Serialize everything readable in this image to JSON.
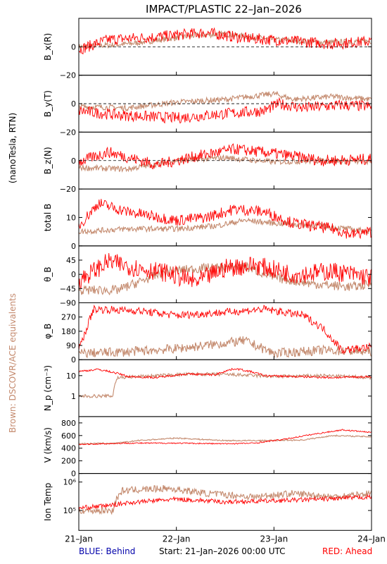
{
  "title": "IMPACT/PLASTIC   22–Jan–2026",
  "left_label_top": "(nanoTesla, RTN)",
  "left_label_bottom": "Brown: DSCOVR/ACE equivalents",
  "footer": {
    "blue": "BLUE: Behind",
    "start": "Start: 21–Jan–2026 00:00 UTC",
    "red": "RED: Ahead"
  },
  "colors": {
    "ahead": "#ff0000",
    "dscovr": "#c48a6e",
    "behind": "#0000aa",
    "axis": "#000000"
  },
  "x_ticks": [
    "21–Jan",
    "22–Jan",
    "23–Jan",
    "24–Jan"
  ],
  "chart_data": [
    {
      "type": "scatter",
      "ylabel": "B_x(R)",
      "yticks": [
        {
          "v": 0,
          "t": "0"
        },
        {
          "v": -20,
          "t": "−20"
        }
      ],
      "ylim": [
        -20,
        20
      ],
      "zero_line": true,
      "series": [
        {
          "color": "dscovr",
          "base": [
            [
              0,
              0
            ],
            [
              0.5,
              2
            ],
            [
              1.2,
              8
            ],
            [
              1.5,
              9
            ],
            [
              2.0,
              5
            ],
            [
              2.5,
              3
            ],
            [
              3,
              4
            ]
          ],
          "noise": 2
        },
        {
          "color": "ahead",
          "base": [
            [
              0,
              -2
            ],
            [
              0.3,
              5
            ],
            [
              0.8,
              7
            ],
            [
              1.3,
              10
            ],
            [
              1.7,
              6
            ],
            [
              2.2,
              4
            ],
            [
              2.6,
              2
            ],
            [
              3,
              4
            ]
          ],
          "noise": 4
        }
      ]
    },
    {
      "type": "scatter",
      "ylabel": "B_y(T)",
      "yticks": [
        {
          "v": 0,
          "t": "0"
        },
        {
          "v": -20,
          "t": "−20"
        }
      ],
      "ylim": [
        -20,
        20
      ],
      "zero_line": true,
      "series": [
        {
          "color": "dscovr",
          "base": [
            [
              0,
              -2
            ],
            [
              0.5,
              -3
            ],
            [
              1.0,
              1
            ],
            [
              1.5,
              3
            ],
            [
              2.0,
              7
            ],
            [
              2.2,
              3
            ],
            [
              2.6,
              5
            ],
            [
              3,
              3
            ]
          ],
          "noise": 2
        },
        {
          "color": "ahead",
          "base": [
            [
              0,
              -5
            ],
            [
              0.4,
              -8
            ],
            [
              1.0,
              -10
            ],
            [
              1.5,
              -7
            ],
            [
              1.9,
              -5
            ],
            [
              2.05,
              0
            ],
            [
              2.3,
              -3
            ],
            [
              2.7,
              -1
            ],
            [
              3,
              -2
            ]
          ],
          "noise": 4
        }
      ]
    },
    {
      "type": "scatter",
      "ylabel": "B_z(N)",
      "yticks": [
        {
          "v": 0,
          "t": "0"
        },
        {
          "v": -20,
          "t": "−20"
        }
      ],
      "ylim": [
        -20,
        20
      ],
      "zero_line": true,
      "series": [
        {
          "color": "dscovr",
          "base": [
            [
              0,
              -5
            ],
            [
              0.5,
              -6
            ],
            [
              1.0,
              0
            ],
            [
              1.5,
              2
            ],
            [
              2.0,
              -1
            ],
            [
              2.5,
              0
            ],
            [
              3,
              -1
            ]
          ],
          "noise": 2
        },
        {
          "color": "ahead",
          "base": [
            [
              0,
              -1
            ],
            [
              0.3,
              6
            ],
            [
              0.8,
              -3
            ],
            [
              1.2,
              3
            ],
            [
              1.6,
              8
            ],
            [
              2.0,
              5
            ],
            [
              2.5,
              0
            ],
            [
              3,
              1
            ]
          ],
          "noise": 4
        }
      ]
    },
    {
      "type": "line",
      "ylabel": "total B",
      "yticks": [
        {
          "v": 10,
          "t": "10"
        },
        {
          "v": 0,
          "t": "0"
        }
      ],
      "ylim": [
        0,
        20
      ],
      "zero_line": false,
      "series": [
        {
          "color": "dscovr",
          "base": [
            [
              0,
              5
            ],
            [
              0.5,
              6
            ],
            [
              1.0,
              6
            ],
            [
              1.4,
              7
            ],
            [
              1.7,
              9
            ],
            [
              2.0,
              8
            ],
            [
              2.5,
              7
            ],
            [
              3,
              5
            ]
          ],
          "noise": 1
        },
        {
          "color": "ahead",
          "base": [
            [
              0,
              7
            ],
            [
              0.2,
              15
            ],
            [
              0.5,
              12
            ],
            [
              1.0,
              9
            ],
            [
              1.3,
              10
            ],
            [
              1.6,
              13
            ],
            [
              1.9,
              12
            ],
            [
              2.2,
              8
            ],
            [
              2.6,
              6
            ],
            [
              2.8,
              4
            ],
            [
              3,
              5
            ]
          ],
          "noise": 2
        }
      ]
    },
    {
      "type": "scatter",
      "ylabel": "θ_B",
      "yticks": [
        {
          "v": 45,
          "t": "45"
        },
        {
          "v": 0,
          "t": "0"
        },
        {
          "v": -45,
          "t": "−45"
        },
        {
          "v": -90,
          "t": "−90"
        }
      ],
      "ylim": [
        -90,
        90
      ],
      "zero_line": false,
      "series": [
        {
          "color": "dscovr",
          "base": [
            [
              0,
              -50
            ],
            [
              0.4,
              -50
            ],
            [
              0.9,
              10
            ],
            [
              1.3,
              20
            ],
            [
              1.7,
              25
            ],
            [
              2.0,
              -10
            ],
            [
              2.4,
              -30
            ],
            [
              2.8,
              -40
            ],
            [
              3,
              -30
            ]
          ],
          "noise": 15
        },
        {
          "color": "ahead",
          "base": [
            [
              0,
              -20
            ],
            [
              0.3,
              40
            ],
            [
              0.6,
              20
            ],
            [
              0.9,
              5
            ],
            [
              1.2,
              -25
            ],
            [
              1.5,
              20
            ],
            [
              1.8,
              30
            ],
            [
              2.2,
              0
            ],
            [
              2.6,
              10
            ],
            [
              3,
              -10
            ]
          ],
          "noise": 30
        }
      ]
    },
    {
      "type": "scatter",
      "ylabel": "φ_B",
      "yticks": [
        {
          "v": 270,
          "t": "270"
        },
        {
          "v": 180,
          "t": "180"
        },
        {
          "v": 90,
          "t": "90"
        },
        {
          "v": 0,
          "t": "0"
        }
      ],
      "ylim": [
        0,
        360
      ],
      "zero_line": false,
      "series": [
        {
          "color": "dscovr",
          "base": [
            [
              0,
              40
            ],
            [
              0.5,
              50
            ],
            [
              1.0,
              70
            ],
            [
              1.3,
              90
            ],
            [
              1.7,
              120
            ],
            [
              2.0,
              40
            ],
            [
              2.5,
              60
            ],
            [
              3,
              50
            ]
          ],
          "noise": 30
        },
        {
          "color": "ahead",
          "base": [
            [
              0,
              60
            ],
            [
              0.15,
              320
            ],
            [
              0.6,
              310
            ],
            [
              1.0,
              280
            ],
            [
              1.5,
              300
            ],
            [
              1.9,
              320
            ],
            [
              2.3,
              280
            ],
            [
              2.5,
              200
            ],
            [
              2.7,
              60
            ],
            [
              3,
              80
            ]
          ],
          "noise": 25
        }
      ]
    },
    {
      "type": "log",
      "ylabel": "N_p (cm⁻³)",
      "yticks": [
        {
          "v": 10,
          "t": "10"
        },
        {
          "v": 1,
          "t": "1"
        }
      ],
      "ylim": [
        0.1,
        60
      ],
      "zero_line": false,
      "series": [
        {
          "color": "dscovr",
          "base": [
            [
              0,
              1
            ],
            [
              0.35,
              1
            ],
            [
              0.4,
              8
            ],
            [
              0.8,
              10
            ],
            [
              1.2,
              12
            ],
            [
              1.6,
              11
            ],
            [
              2.0,
              9
            ],
            [
              2.5,
              10
            ],
            [
              3,
              8
            ]
          ],
          "noise": 0.08
        },
        {
          "color": "ahead",
          "base": [
            [
              0,
              16
            ],
            [
              0.2,
              20
            ],
            [
              0.5,
              9
            ],
            [
              0.8,
              8
            ],
            [
              1.1,
              12
            ],
            [
              1.4,
              11
            ],
            [
              1.6,
              22
            ],
            [
              1.9,
              10
            ],
            [
              2.2,
              9
            ],
            [
              2.6,
              8
            ],
            [
              3,
              9
            ]
          ],
          "noise": 0.05
        }
      ]
    },
    {
      "type": "line",
      "ylabel": "V (km/s)",
      "yticks": [
        {
          "v": 800,
          "t": "800"
        },
        {
          "v": 600,
          "t": "600"
        },
        {
          "v": 400,
          "t": "400"
        },
        {
          "v": 200,
          "t": "200"
        },
        {
          "v": 0,
          "t": "0"
        }
      ],
      "ylim": [
        0,
        900
      ],
      "zero_line": false,
      "series": [
        {
          "color": "dscovr",
          "base": [
            [
              0,
              470
            ],
            [
              0.4,
              480
            ],
            [
              0.6,
              520
            ],
            [
              1.0,
              560
            ],
            [
              1.5,
              520
            ],
            [
              1.9,
              520
            ],
            [
              2.3,
              530
            ],
            [
              2.6,
              600
            ],
            [
              3,
              580
            ]
          ],
          "noise": 10
        },
        {
          "color": "ahead",
          "base": [
            [
              0,
              460
            ],
            [
              0.5,
              480
            ],
            [
              1.0,
              480
            ],
            [
              1.5,
              470
            ],
            [
              1.8,
              480
            ],
            [
              2.1,
              540
            ],
            [
              2.4,
              620
            ],
            [
              2.7,
              690
            ],
            [
              3,
              650
            ]
          ],
          "noise": 10
        }
      ]
    },
    {
      "type": "log",
      "ylabel": "Ion Temp",
      "yticks": [
        {
          "v": 1000000,
          "t": "10⁶"
        },
        {
          "v": 100000,
          "t": "10⁵"
        }
      ],
      "ylim": [
        20000,
        2000000
      ],
      "zero_line": false,
      "series": [
        {
          "color": "dscovr",
          "base": [
            [
              0,
              100000
            ],
            [
              0.35,
              100000
            ],
            [
              0.45,
              500000
            ],
            [
              0.9,
              600000
            ],
            [
              1.3,
              400000
            ],
            [
              1.8,
              300000
            ],
            [
              2.2,
              400000
            ],
            [
              2.6,
              300000
            ],
            [
              3,
              400000
            ]
          ],
          "noise": 0.12
        },
        {
          "color": "ahead",
          "base": [
            [
              0,
              120000
            ],
            [
              0.3,
              150000
            ],
            [
              0.6,
              200000
            ],
            [
              1.0,
              250000
            ],
            [
              1.5,
              200000
            ],
            [
              2.0,
              220000
            ],
            [
              2.5,
              250000
            ],
            [
              3,
              300000
            ]
          ],
          "noise": 0.08
        }
      ]
    }
  ]
}
